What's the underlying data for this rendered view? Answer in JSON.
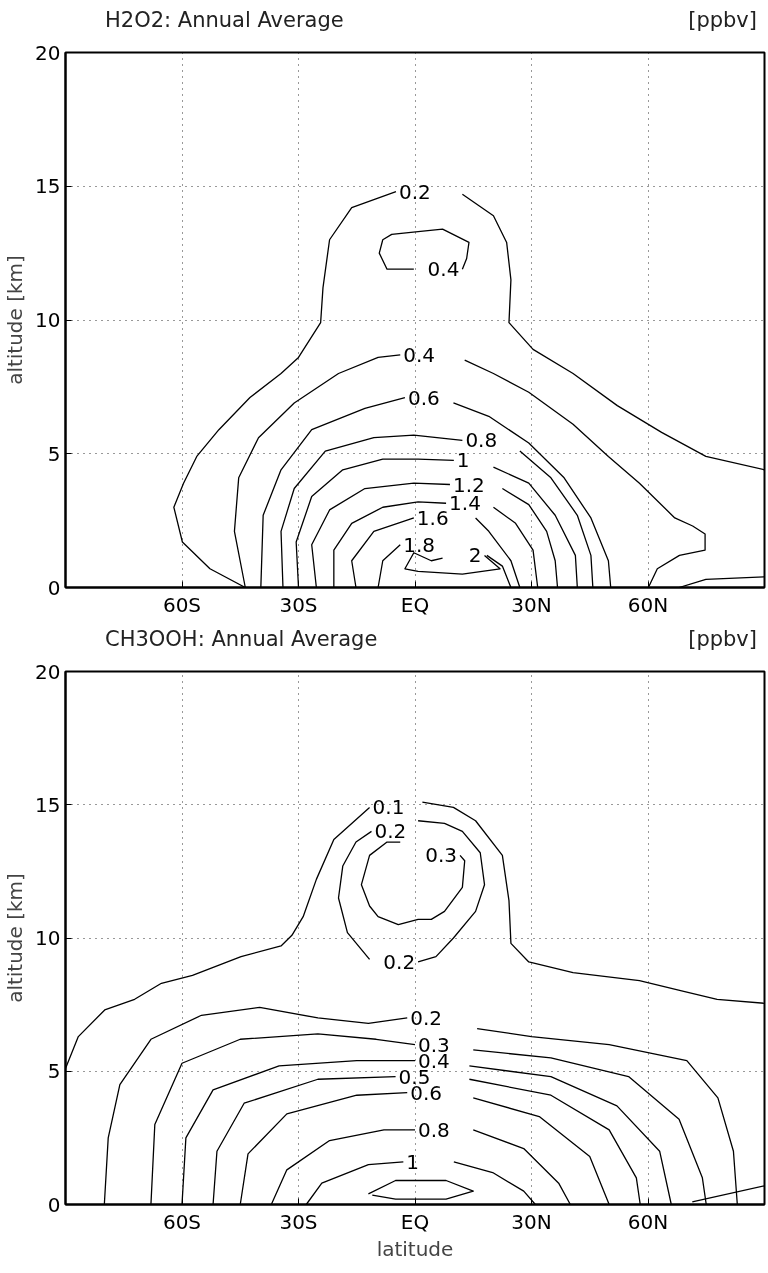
{
  "chart_data": [
    {
      "type": "line",
      "title": "H2O2: Annual Average",
      "ylabel": "altitude [km]",
      "annotations": [
        "[ppbv]"
      ],
      "xlim": [
        -90,
        90
      ],
      "ylim": [
        0,
        20
      ],
      "xticks": [
        {
          "value": -60,
          "label": "60S"
        },
        {
          "value": -30,
          "label": "30S"
        },
        {
          "value": 0,
          "label": "EQ"
        },
        {
          "value": 30,
          "label": "30N"
        },
        {
          "value": 60,
          "label": "60N"
        }
      ],
      "yticks": [
        0,
        5,
        10,
        15,
        20
      ],
      "grid": true,
      "line_style": "solid",
      "series": [
        {
          "name": "0.2",
          "color": "#000000",
          "x": [
            -43.7,
            -52.8,
            -59.9,
            -62.1,
            -59.6,
            -56.2,
            -50.5,
            -42.5,
            -34.5,
            -30,
            -24.3,
            -23.7,
            -22,
            -16.3,
            -4.9
          ],
          "values": [
            0,
            0.7,
            1.7,
            3.0,
            3.9,
            4.9,
            5.9,
            7.1,
            8.0,
            8.6,
            9.9,
            11.2,
            13.0,
            14.2,
            14.8
          ]
        },
        {
          "color": "#000000",
          "x": [
            12.2,
            20.2,
            23.6,
            24.7,
            24.2,
            30.4,
            40.7,
            52.1,
            63.5,
            74.9,
            90
          ],
          "values": [
            14.7,
            13.9,
            12.9,
            11.5,
            9.9,
            8.9,
            8.0,
            6.8,
            5.8,
            4.9,
            4.4
          ]
        },
        {
          "color": "#000000",
          "x": [
            68,
            74.9,
            90
          ],
          "values": [
            0,
            0.3,
            0.4
          ]
        },
        {
          "name": "0.4",
          "color": "#000000",
          "x": [
            -0.3,
            -7.2,
            -9.2,
            -8.3,
            -6,
            0.8,
            7.1,
            13.9,
            13.3,
            12.2
          ],
          "values": [
            11.9,
            11.9,
            12.5,
            13.0,
            13.2,
            13.3,
            13.4,
            12.9,
            12.3,
            11.9
          ]
        },
        {
          "name": "0.4",
          "color": "#000000",
          "x": [
            -43.7,
            -46.5,
            -45.4,
            -40.3,
            -31.1,
            -19.7,
            -9.5,
            -3.8
          ],
          "values": [
            0,
            2.1,
            4.1,
            5.6,
            6.9,
            8.0,
            8.6,
            8.7
          ]
        },
        {
          "color": "#000000",
          "x": [
            12.8,
            20.2,
            29.3,
            40.7,
            49.8,
            57.8,
            66.9,
            71.5,
            74.7,
            74.7,
            68.1,
            62.4,
            60.1
          ],
          "values": [
            8.5,
            8.0,
            7.3,
            6.1,
            4.9,
            3.9,
            2.6,
            2.3,
            2.0,
            1.4,
            1.2,
            0.7,
            0
          ]
        },
        {
          "name": "0.6",
          "color": "#000000",
          "x": [
            -39.7,
            -39.1,
            -34.5,
            -26.6,
            -12.9,
            -2.6
          ],
          "values": [
            0,
            2.7,
            4.4,
            5.9,
            6.7,
            7.1
          ]
        },
        {
          "color": "#000000",
          "x": [
            9.9,
            19,
            29.3,
            38.4,
            45.3,
            49.8,
            50.4
          ],
          "values": [
            6.9,
            6.4,
            5.4,
            4.1,
            2.6,
            1.0,
            0
          ]
        },
        {
          "name": "0.8",
          "color": "#000000",
          "x": [
            -34,
            -34.5,
            -31.1,
            -23.1,
            -10.6,
            -0.3,
            12.2
          ],
          "values": [
            0,
            2.1,
            3.7,
            5.1,
            5.6,
            5.7,
            5.5
          ]
        },
        {
          "color": "#000000",
          "x": [
            27,
            35,
            41.8,
            45.3,
            45.8
          ],
          "values": [
            5.1,
            4.1,
            2.7,
            1.2,
            0
          ]
        },
        {
          "name": "1",
          "color": "#000000",
          "x": [
            -30,
            -30.6,
            -26.6,
            -18.6,
            -8.3,
            0.8,
            10
          ],
          "values": [
            0,
            1.7,
            3.4,
            4.4,
            4.8,
            4.8,
            4.75
          ]
        },
        {
          "color": "#000000",
          "x": [
            20.2,
            29.3,
            36.1,
            41.3,
            41.8
          ],
          "values": [
            4.5,
            3.9,
            2.7,
            1.2,
            0
          ]
        },
        {
          "name": "1.2",
          "color": "#000000",
          "x": [
            -25.4,
            -26.6,
            -22,
            -12.9,
            -0.3,
            9
          ],
          "values": [
            0,
            1.6,
            2.9,
            3.7,
            3.9,
            3.85
          ]
        },
        {
          "color": "#000000",
          "x": [
            22.5,
            29.3,
            33.9,
            36.1,
            36.7
          ],
          "values": [
            3.7,
            3.1,
            2.1,
            1.0,
            0
          ]
        },
        {
          "name": "1.4",
          "color": "#000000",
          "x": [
            -20.9,
            -20.9,
            -16.3,
            -8.3,
            0.8,
            8
          ],
          "values": [
            0,
            1.4,
            2.4,
            3.0,
            3.2,
            3.15
          ]
        },
        {
          "color": "#000000",
          "x": [
            20.2,
            25.9,
            30.4,
            31.6
          ],
          "values": [
            3.0,
            2.4,
            1.4,
            0
          ]
        },
        {
          "name": "1.6",
          "color": "#000000",
          "x": [
            -15.2,
            -16.3,
            -10.6,
            -0.3
          ],
          "values": [
            0,
            1.0,
            2.1,
            2.6
          ]
        },
        {
          "color": "#000000",
          "x": [
            15.6,
            19,
            24.7,
            27
          ],
          "values": [
            2.6,
            2.1,
            1.0,
            0
          ]
        },
        {
          "name": "1.8",
          "color": "#000000",
          "x": [
            -9.5,
            -8.3,
            -3.8
          ],
          "values": [
            0,
            1.0,
            1.6
          ]
        },
        {
          "color": "#000000",
          "x": [
            18.5,
            22.5,
            24.7
          ],
          "values": [
            1.2,
            0.8,
            0
          ]
        },
        {
          "name": "2",
          "color": "#000000",
          "x": [
            7.1,
            4.2,
            -0.3,
            -2.6,
            0.8,
            12.2,
            21.9,
            17.9
          ],
          "values": [
            1.1,
            1.0,
            1.3,
            0.7,
            0.6,
            0.5,
            0.7,
            1.2
          ]
        }
      ]
    },
    {
      "type": "line",
      "title": "CH3OOH: Annual Average",
      "xlabel": "latitude",
      "ylabel": "altitude [km]",
      "annotations": [
        "[ppbv]"
      ],
      "xlim": [
        -90,
        90
      ],
      "ylim": [
        0,
        20
      ],
      "xticks": [
        {
          "value": -60,
          "label": "60S"
        },
        {
          "value": -30,
          "label": "30S"
        },
        {
          "value": 0,
          "label": "EQ"
        },
        {
          "value": 30,
          "label": "30N"
        },
        {
          "value": 60,
          "label": "60N"
        }
      ],
      "yticks": [
        0,
        5,
        10,
        15,
        20
      ],
      "grid": true,
      "line_style": "solid",
      "series": [
        {
          "name": "0.1",
          "color": "#000000",
          "x": [
            -90,
            -86.7,
            -79.9,
            -72.2,
            -65.3,
            -57.3,
            -44.8,
            -34.5,
            -31.7,
            -28.8,
            -25.4,
            -20.9,
            -11.7
          ],
          "values": [
            5.1,
            6.3,
            7.3,
            7.7,
            8.3,
            8.6,
            9.3,
            9.7,
            10.1,
            10.8,
            12.2,
            13.7,
            14.9
          ]
        },
        {
          "color": "#000000",
          "x": [
            1.9,
            9.9,
            15.6,
            22.5,
            24.2,
            24.7,
            29.3,
            40.7,
            57.8,
            69.2,
            77.8,
            90
          ],
          "values": [
            15.1,
            14.9,
            14.4,
            13.1,
            11.4,
            9.8,
            9.1,
            8.7,
            8.4,
            8.0,
            7.7,
            7.55
          ]
        },
        {
          "color": "#000000",
          "x": [
            71.4,
            90
          ],
          "values": [
            0.1,
            0.7
          ]
        },
        {
          "name": "0.2",
          "color": "#000000",
          "x": [
            0.8,
            7.6,
            12.2,
            16.8,
            17.9,
            15.6,
            9.9,
            5.4,
            0.8
          ],
          "values": [
            14.4,
            14.3,
            14.0,
            13.2,
            12.0,
            11.0,
            10.0,
            9.3,
            9.1
          ]
        },
        {
          "name": "0.2",
          "color": "#000000",
          "x": [
            -11.7,
            -17.4,
            -19.7,
            -18.6,
            -15.2,
            -11.2
          ],
          "values": [
            9.2,
            10.2,
            11.5,
            12.7,
            13.6,
            14.0
          ]
        },
        {
          "name": "0.3",
          "color": "#000000",
          "x": [
            -3.8,
            -7.2,
            -11.7,
            -13.8,
            -11.7,
            -9.5,
            -4.3,
            0.8,
            4.2,
            7.6,
            12.2,
            12.8,
            11.6
          ],
          "values": [
            13.6,
            13.6,
            13.1,
            12.0,
            11.2,
            10.8,
            10.5,
            10.7,
            10.7,
            11.0,
            11.9,
            12.9,
            13.1
          ]
        },
        {
          "name": "0.2",
          "color": "#000000",
          "x": [
            -80,
            -79,
            -76,
            -68,
            -55,
            -40,
            -25,
            -12,
            -2
          ],
          "values": [
            0,
            2.5,
            4.5,
            6.2,
            7.1,
            7.4,
            7.0,
            6.8,
            7.0
          ]
        },
        {
          "color": "#000000",
          "x": [
            16,
            30,
            50,
            70,
            78,
            82,
            83
          ],
          "values": [
            6.6,
            6.3,
            6.0,
            5.4,
            4.0,
            2.0,
            0
          ]
        },
        {
          "name": "0.3",
          "color": "#000000",
          "x": [
            -68,
            -67,
            -60,
            -45,
            -25,
            -10,
            0
          ],
          "values": [
            0,
            3,
            5.3,
            6.2,
            6.4,
            6.2,
            6.0
          ]
        },
        {
          "color": "#000000",
          "x": [
            15,
            35,
            55,
            68,
            74,
            75
          ],
          "values": [
            5.8,
            5.5,
            4.8,
            3.2,
            1.0,
            0
          ]
        },
        {
          "name": "0.4",
          "color": "#000000",
          "x": [
            -60,
            -59,
            -52,
            -35,
            -15,
            0
          ],
          "values": [
            0,
            2.5,
            4.3,
            5.2,
            5.4,
            5.4
          ]
        },
        {
          "color": "#000000",
          "x": [
            14,
            35,
            52,
            63,
            66
          ],
          "values": [
            5.2,
            4.8,
            3.7,
            2.0,
            0
          ]
        },
        {
          "name": "0.5",
          "color": "#000000",
          "x": [
            -52,
            -51,
            -44,
            -25,
            -5
          ],
          "values": [
            0,
            2,
            3.8,
            4.7,
            4.8
          ]
        },
        {
          "color": "#000000",
          "x": [
            14,
            35,
            50,
            57,
            58
          ],
          "values": [
            4.7,
            4.1,
            2.8,
            1.0,
            0
          ]
        },
        {
          "name": "0.6",
          "color": "#000000",
          "x": [
            -45,
            -43,
            -33,
            -15,
            -2
          ],
          "values": [
            0,
            1.9,
            3.4,
            4.1,
            4.2
          ]
        },
        {
          "color": "#000000",
          "x": [
            15,
            32,
            45,
            50
          ],
          "values": [
            4.0,
            3.3,
            1.8,
            0
          ]
        },
        {
          "name": "0.8",
          "color": "#000000",
          "x": [
            -37,
            -33,
            -22,
            -8,
            0
          ],
          "values": [
            0,
            1.3,
            2.4,
            2.8,
            2.8
          ]
        },
        {
          "color": "#000000",
          "x": [
            15,
            28,
            37,
            40
          ],
          "values": [
            2.8,
            2.1,
            0.8,
            0
          ]
        },
        {
          "name": "1",
          "color": "#000000",
          "x": [
            -28,
            -24,
            -12,
            -3
          ],
          "values": [
            0,
            0.8,
            1.5,
            1.6
          ]
        },
        {
          "color": "#000000",
          "x": [
            10,
            20,
            28,
            31
          ],
          "values": [
            1.6,
            1.2,
            0.5,
            0
          ]
        },
        {
          "color": "#000000",
          "x": [
            -12,
            -5,
            8,
            15,
            8,
            -5,
            -11
          ],
          "values": [
            0.4,
            0.9,
            0.9,
            0.5,
            0.2,
            0.2,
            0.35
          ]
        }
      ]
    }
  ]
}
